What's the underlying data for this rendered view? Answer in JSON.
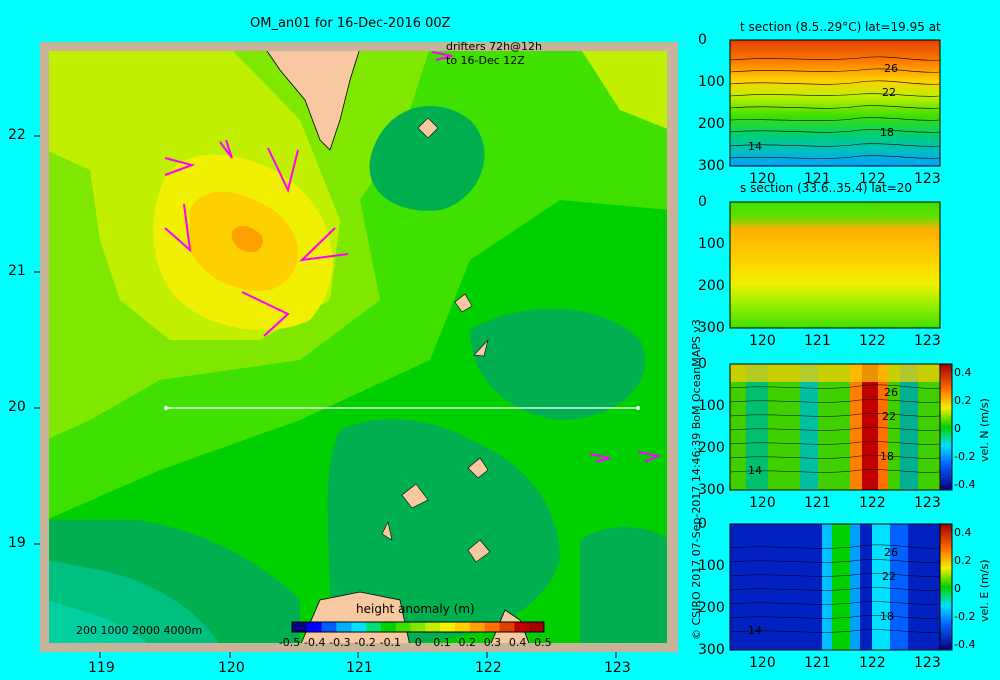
{
  "main_map": {
    "title": "OM_an01 for 16-Dec-2016 00Z",
    "drifter_note_1": "drifters 72h@12h",
    "drifter_note_2": "to 16-Dec 12Z",
    "bathymetry_legend": "200  1000  2000  4000m",
    "x_ticks": [
      "119",
      "120",
      "121",
      "122",
      "123"
    ],
    "y_ticks": [
      "22",
      "21",
      "20",
      "19"
    ],
    "colorbar": {
      "label": "height anomaly (m)",
      "ticks": [
        "-0.5",
        "-0.4",
        "-0.3",
        "-0.2",
        "-0.1",
        "0",
        "0.1",
        "0.2",
        "0.3",
        "0.4",
        "0.5"
      ],
      "colors": [
        "#000080",
        "#0000ff",
        "#0060ff",
        "#00b0ff",
        "#00e0ff",
        "#00e070",
        "#00d000",
        "#40e000",
        "#80e800",
        "#c0f000",
        "#f0f000",
        "#ffd000",
        "#ffa000",
        "#ff7000",
        "#e04000",
        "#c00000",
        "#a00000"
      ]
    }
  },
  "credit": "© CSIRO 2017   07-Sep-2017 14:46:39 BoM OceanMAPS v3",
  "sections": [
    {
      "title": "t section (8.5..29°C) lat=19.95 at",
      "x_ticks": [
        "120",
        "121",
        "122",
        "123"
      ],
      "y_ticks": [
        "0",
        "100",
        "200",
        "300"
      ],
      "contours": [
        "26",
        "22",
        "18",
        "14"
      ]
    },
    {
      "title": "s section (33.6..35.4) lat=20",
      "x_ticks": [
        "120",
        "121",
        "122",
        "123"
      ],
      "y_ticks": [
        "0",
        "100",
        "200",
        "300"
      ]
    },
    {
      "title": "",
      "x_ticks": [
        "120",
        "121",
        "122",
        "123"
      ],
      "y_ticks": [
        "0",
        "100",
        "200",
        "300"
      ],
      "contours": [
        "26",
        "22",
        "18",
        "14"
      ],
      "colorbar_ticks": [
        "0.4",
        "0.2",
        "0",
        "-0.2",
        "-0.4"
      ],
      "colorbar_label": "vel. N (m/s)"
    },
    {
      "title": "",
      "x_ticks": [
        "120",
        "121",
        "122",
        "123"
      ],
      "y_ticks": [
        "0",
        "100",
        "200",
        "300"
      ],
      "contours": [
        "26",
        "22",
        "18",
        "14"
      ],
      "colorbar_ticks": [
        "0.4",
        "0.2",
        "0",
        "-0.2",
        "-0.4"
      ],
      "colorbar_label": "vel. E (m/s)"
    }
  ],
  "chart_data": [
    {
      "type": "heatmap",
      "title": "OM_an01 for 16-Dec-2016 00Z",
      "xlim": [
        118.5,
        123.5
      ],
      "ylim": [
        18.2,
        22.7
      ],
      "x_ticks": [
        119,
        120,
        121,
        122,
        123
      ],
      "y_ticks": [
        19,
        20,
        21,
        22
      ],
      "colorbar_range": [
        -0.5,
        0.5
      ],
      "colorbar_label": "height anomaly (m)",
      "section_line": {
        "lat": 20,
        "lon": [
          119.5,
          123.2
        ]
      },
      "features": [
        {
          "kind": "eddy_max",
          "lon": 120.1,
          "lat": 21.25,
          "value": 0.2
        },
        {
          "kind": "depression",
          "lon": 118.8,
          "lat": 18.6,
          "value": -0.1
        }
      ]
    },
    {
      "type": "heatmap",
      "title": "t section (8.5..29°C) lat=19.95 at",
      "xlim": [
        119.6,
        123.2
      ],
      "ylim": [
        300,
        0
      ],
      "contour_labels": [
        26,
        22,
        18,
        14
      ]
    },
    {
      "type": "heatmap",
      "title": "s section (33.6..35.4) lat=20",
      "xlim": [
        119.6,
        123.2
      ],
      "ylim": [
        300,
        0
      ]
    },
    {
      "type": "heatmap",
      "title": "vel. N (m/s)",
      "xlim": [
        119.6,
        123.2
      ],
      "ylim": [
        300,
        0
      ],
      "colorbar_range": [
        -0.4,
        0.4
      ]
    },
    {
      "type": "heatmap",
      "title": "vel. E (m/s)",
      "xlim": [
        119.6,
        123.2
      ],
      "ylim": [
        300,
        0
      ],
      "colorbar_range": [
        -0.4,
        0.4
      ]
    }
  ]
}
